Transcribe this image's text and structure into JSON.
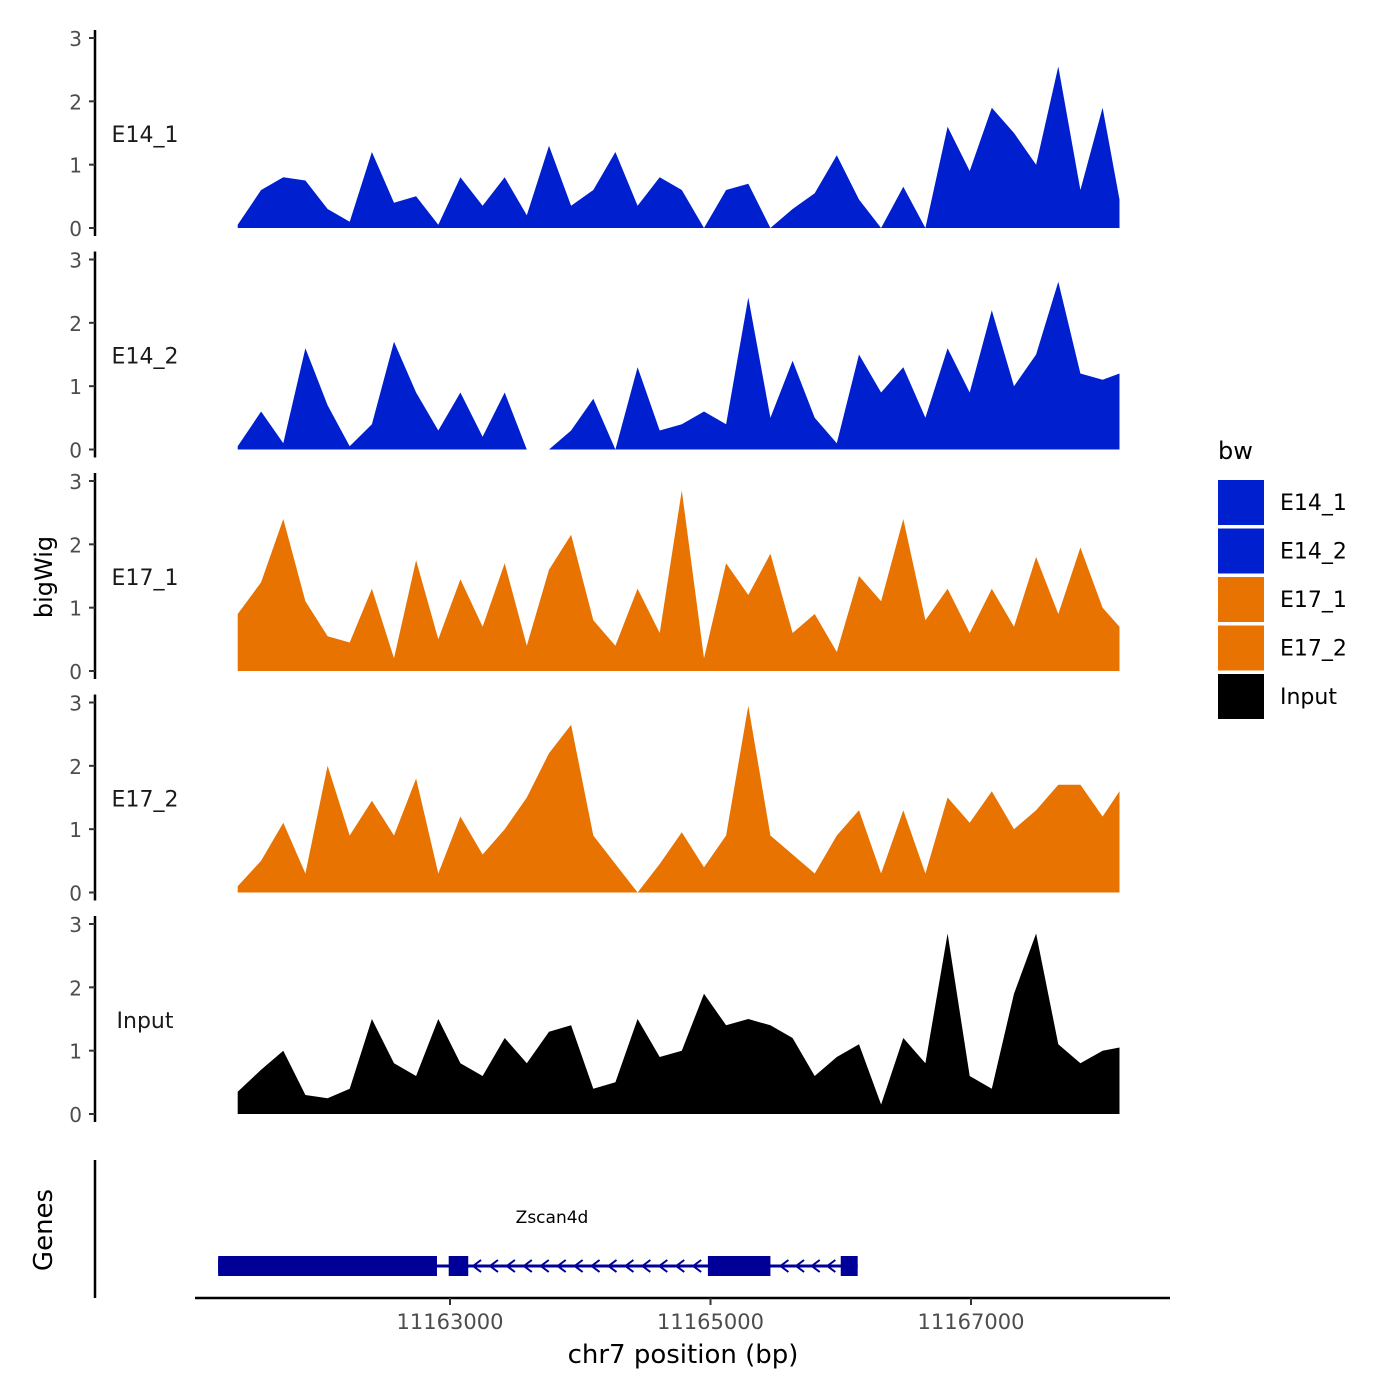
{
  "chart_data": {
    "type": "area",
    "title": "",
    "xlabel": "chr7 position (bp)",
    "ylabel": "bigWig",
    "genes_label": "Genes",
    "x_ticks": [
      11163000,
      11165000,
      11167000
    ],
    "x_tick_labels": [
      "11163000",
      "11165000",
      "11167000"
    ],
    "xlim": [
      11161000,
      11168500
    ],
    "ylim": [
      0,
      3
    ],
    "y_ticks": [
      0,
      1,
      2,
      3
    ],
    "y_tick_labels": [
      "0",
      "1",
      "2",
      "3"
    ],
    "legend": {
      "title": "bw",
      "position": "right",
      "entries": [
        {
          "label": "E14_1",
          "color": "#0020D0"
        },
        {
          "label": "E14_2",
          "color": "#0020D0"
        },
        {
          "label": "E17_1",
          "color": "#E87300"
        },
        {
          "label": "E17_2",
          "color": "#E87300"
        },
        {
          "label": "Input",
          "color": "#000000"
        }
      ]
    },
    "x": [
      11161370,
      11161550,
      11161720,
      11161890,
      11162060,
      11162230,
      11162400,
      11162570,
      11162740,
      11162910,
      11163080,
      11163250,
      11163420,
      11163590,
      11163760,
      11163930,
      11164100,
      11164270,
      11164440,
      11164610,
      11164780,
      11164950,
      11165120,
      11165290,
      11165460,
      11165630,
      11165800,
      11165970,
      11166140,
      11166310,
      11166480,
      11166650,
      11166820,
      11166990,
      11167160,
      11167330,
      11167500,
      11167670,
      11167840,
      11168010,
      11168140
    ],
    "series": [
      {
        "name": "E14_1",
        "color": "#0020D0",
        "values": [
          0.05,
          0.6,
          0.8,
          0.75,
          0.3,
          0.1,
          1.2,
          0.4,
          0.5,
          0.05,
          0.8,
          0.35,
          0.8,
          0.2,
          1.3,
          0.35,
          0.6,
          1.2,
          0.35,
          0.8,
          0.6,
          0,
          0.6,
          0.7,
          0.0,
          0.3,
          0.55,
          1.15,
          0.45,
          0,
          0.65,
          0,
          1.6,
          0.9,
          1.9,
          1.5,
          1.0,
          2.55,
          0.6,
          1.9,
          0.45
        ]
      },
      {
        "name": "E14_2",
        "color": "#0020D0",
        "values": [
          0.05,
          0.6,
          0.1,
          1.6,
          0.7,
          0.05,
          0.4,
          1.7,
          0.9,
          0.3,
          0.9,
          0.2,
          0.9,
          0.0,
          0.0,
          0.3,
          0.8,
          0.0,
          1.3,
          0.3,
          0.4,
          0.6,
          0.4,
          2.4,
          0.5,
          1.4,
          0.5,
          0.1,
          1.5,
          0.9,
          1.3,
          0.5,
          1.6,
          0.9,
          2.2,
          1.0,
          1.5,
          2.65,
          1.2,
          1.1,
          1.2
        ]
      },
      {
        "name": "E17_1",
        "color": "#E87300",
        "values": [
          0.9,
          1.4,
          2.4,
          1.1,
          0.55,
          0.45,
          1.3,
          0.2,
          1.75,
          0.5,
          1.45,
          0.7,
          1.7,
          0.4,
          1.6,
          2.15,
          0.8,
          0.4,
          1.3,
          0.6,
          2.85,
          0.2,
          1.7,
          1.2,
          1.85,
          0.6,
          0.9,
          0.3,
          1.5,
          1.1,
          2.4,
          0.8,
          1.3,
          0.6,
          1.3,
          0.7,
          1.8,
          0.9,
          1.95,
          1.0,
          0.7
        ]
      },
      {
        "name": "E17_2",
        "color": "#E87300",
        "values": [
          0.1,
          0.5,
          1.1,
          0.3,
          2.0,
          0.9,
          1.45,
          0.9,
          1.8,
          0.3,
          1.2,
          0.6,
          1.0,
          1.5,
          2.2,
          2.65,
          0.9,
          0.45,
          0.0,
          0.45,
          0.95,
          0.4,
          0.9,
          2.95,
          0.9,
          0.6,
          0.3,
          0.9,
          1.3,
          0.3,
          1.3,
          0.3,
          1.5,
          1.1,
          1.6,
          1.0,
          1.3,
          1.7,
          1.7,
          1.2,
          1.6
        ]
      },
      {
        "name": "Input",
        "color": "#000000",
        "values": [
          0.35,
          0.7,
          1.0,
          0.3,
          0.25,
          0.4,
          1.5,
          0.8,
          0.6,
          1.5,
          0.8,
          0.6,
          1.2,
          0.8,
          1.3,
          1.4,
          0.4,
          0.5,
          1.5,
          0.9,
          1.0,
          1.9,
          1.4,
          1.5,
          1.4,
          1.2,
          0.6,
          0.9,
          1.1,
          0.15,
          1.2,
          0.8,
          2.85,
          0.6,
          0.4,
          1.9,
          2.85,
          1.1,
          0.8,
          1.0,
          1.05
        ]
      }
    ],
    "gene_track": {
      "gene_name": "Zscan4d",
      "color": "#000099",
      "strand": "-",
      "start": 11161220,
      "end": 11166130,
      "exons": [
        {
          "start": 11161220,
          "end": 11162900
        },
        {
          "start": 11162990,
          "end": 11163140
        },
        {
          "start": 11164980,
          "end": 11165460
        },
        {
          "start": 11166000,
          "end": 11166130
        }
      ],
      "utrs": [
        {
          "start": 11161220,
          "end": 11161630
        }
      ],
      "arrows": [
        11163200,
        11163330,
        11163460,
        11163590,
        11163720,
        11163850,
        11163980,
        11164110,
        11164240,
        11164370,
        11164500,
        11164630,
        11164760,
        11164890,
        11165560,
        11165680,
        11165800,
        11165920
      ]
    }
  }
}
